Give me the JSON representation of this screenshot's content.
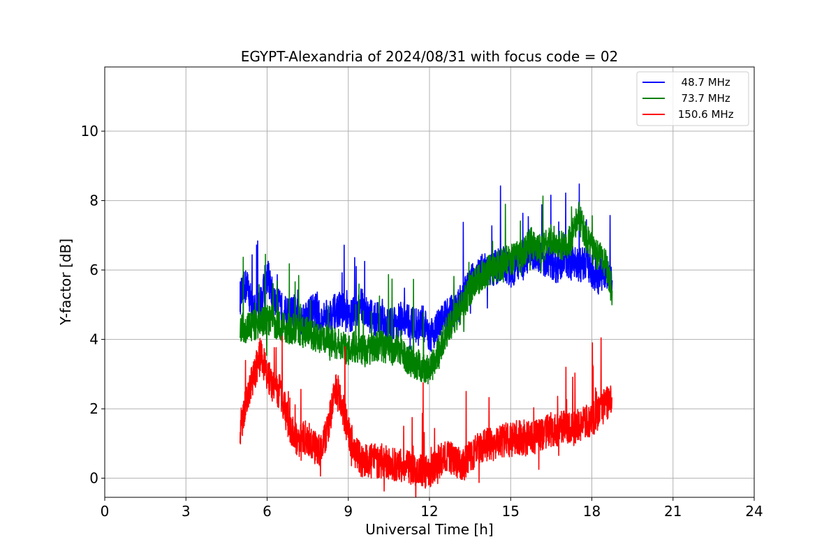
{
  "chart_data": {
    "type": "line",
    "title": "EGYPT-Alexandria of 2024/08/31 with focus code = 02",
    "xlabel": "Universal Time [h]",
    "ylabel": "Y-factor [dB]",
    "xlim": [
      0,
      24
    ],
    "ylim": [
      -0.55,
      11.85
    ],
    "xticks": [
      0,
      3,
      6,
      9,
      12,
      15,
      18,
      21,
      24
    ],
    "yticks": [
      0,
      2,
      4,
      6,
      8,
      10
    ],
    "grid": true,
    "legend": "top-right",
    "series": [
      {
        "name": "  48.7 MHz",
        "color": "#0000ff",
        "x": [
          5.0,
          5.25,
          5.5,
          5.75,
          6.0,
          6.25,
          6.5,
          6.75,
          7.0,
          7.25,
          7.5,
          7.75,
          8.0,
          8.25,
          8.5,
          8.75,
          9.0,
          9.25,
          9.5,
          9.75,
          10.0,
          10.25,
          10.5,
          10.75,
          11.0,
          11.25,
          11.5,
          11.75,
          12.0,
          12.25,
          12.5,
          12.75,
          13.0,
          13.25,
          13.5,
          13.75,
          14.0,
          14.25,
          14.5,
          14.75,
          15.0,
          15.25,
          15.5,
          15.75,
          16.0,
          16.25,
          16.5,
          16.75,
          17.0,
          17.25,
          17.5,
          17.75,
          18.0,
          18.25,
          18.5,
          18.75
        ],
        "y": [
          5.2,
          5.6,
          4.8,
          5.0,
          5.9,
          5.1,
          4.9,
          4.7,
          4.8,
          4.6,
          4.7,
          4.9,
          4.5,
          4.7,
          4.8,
          4.9,
          4.6,
          4.8,
          5.0,
          4.7,
          4.6,
          4.5,
          4.4,
          4.5,
          4.6,
          4.5,
          4.4,
          4.5,
          4.1,
          4.3,
          4.6,
          4.8,
          4.9,
          5.2,
          5.6,
          5.9,
          6.0,
          6.0,
          6.1,
          6.2,
          6.0,
          6.1,
          6.2,
          6.5,
          6.4,
          6.3,
          6.2,
          6.1,
          6.3,
          6.2,
          6.1,
          6.2,
          6.0,
          5.8,
          6.0,
          5.7
        ]
      },
      {
        "name": "  73.7 MHz",
        "color": "#008000",
        "x": [
          5.0,
          5.25,
          5.5,
          5.75,
          6.0,
          6.25,
          6.5,
          6.75,
          7.0,
          7.25,
          7.5,
          7.75,
          8.0,
          8.25,
          8.5,
          8.75,
          9.0,
          9.25,
          9.5,
          9.75,
          10.0,
          10.25,
          10.5,
          10.75,
          11.0,
          11.25,
          11.5,
          11.75,
          12.0,
          12.25,
          12.5,
          12.75,
          13.0,
          13.25,
          13.5,
          13.75,
          14.0,
          14.25,
          14.5,
          14.75,
          15.0,
          15.25,
          15.5,
          15.75,
          16.0,
          16.25,
          16.5,
          16.75,
          17.0,
          17.25,
          17.5,
          17.75,
          18.0,
          18.25,
          18.5,
          18.75
        ],
        "y": [
          4.4,
          4.3,
          4.4,
          4.5,
          4.6,
          4.5,
          4.4,
          4.3,
          4.3,
          4.2,
          4.2,
          4.1,
          4.0,
          4.0,
          3.9,
          3.8,
          3.7,
          3.8,
          3.7,
          3.7,
          3.8,
          3.8,
          3.7,
          3.7,
          3.6,
          3.4,
          3.3,
          3.2,
          3.1,
          3.5,
          4.0,
          4.4,
          4.7,
          5.0,
          5.4,
          5.7,
          5.9,
          6.0,
          6.1,
          6.2,
          6.3,
          6.4,
          6.5,
          6.8,
          6.6,
          6.7,
          6.9,
          6.8,
          6.7,
          6.9,
          7.6,
          7.0,
          6.6,
          6.4,
          6.2,
          5.4
        ]
      },
      {
        "name": " 150.6 MHz",
        "color": "#ff0000",
        "x": [
          5.0,
          5.25,
          5.5,
          5.75,
          6.0,
          6.25,
          6.5,
          6.75,
          7.0,
          7.25,
          7.5,
          7.75,
          8.0,
          8.25,
          8.5,
          8.75,
          9.0,
          9.25,
          9.5,
          9.75,
          10.0,
          10.25,
          10.5,
          10.75,
          11.0,
          11.25,
          11.5,
          11.75,
          12.0,
          12.25,
          12.5,
          12.75,
          13.0,
          13.25,
          13.5,
          13.75,
          14.0,
          14.25,
          14.5,
          14.75,
          15.0,
          15.25,
          15.5,
          15.75,
          16.0,
          16.25,
          16.5,
          16.75,
          17.0,
          17.25,
          17.5,
          17.75,
          18.0,
          18.25,
          18.5,
          18.75
        ],
        "y": [
          1.4,
          2.3,
          2.9,
          3.6,
          3.0,
          2.6,
          2.5,
          1.7,
          1.2,
          1.1,
          1.2,
          0.9,
          0.8,
          1.4,
          2.6,
          2.2,
          1.3,
          0.8,
          0.5,
          0.5,
          0.5,
          0.5,
          0.4,
          0.4,
          0.4,
          0.3,
          0.3,
          0.2,
          0.2,
          0.4,
          0.6,
          0.6,
          0.5,
          0.4,
          0.6,
          0.8,
          0.9,
          1.0,
          1.0,
          1.1,
          1.1,
          1.2,
          1.1,
          1.2,
          1.2,
          1.3,
          1.4,
          1.4,
          1.5,
          1.4,
          1.5,
          1.6,
          1.7,
          1.9,
          2.1,
          2.3
        ]
      }
    ]
  }
}
